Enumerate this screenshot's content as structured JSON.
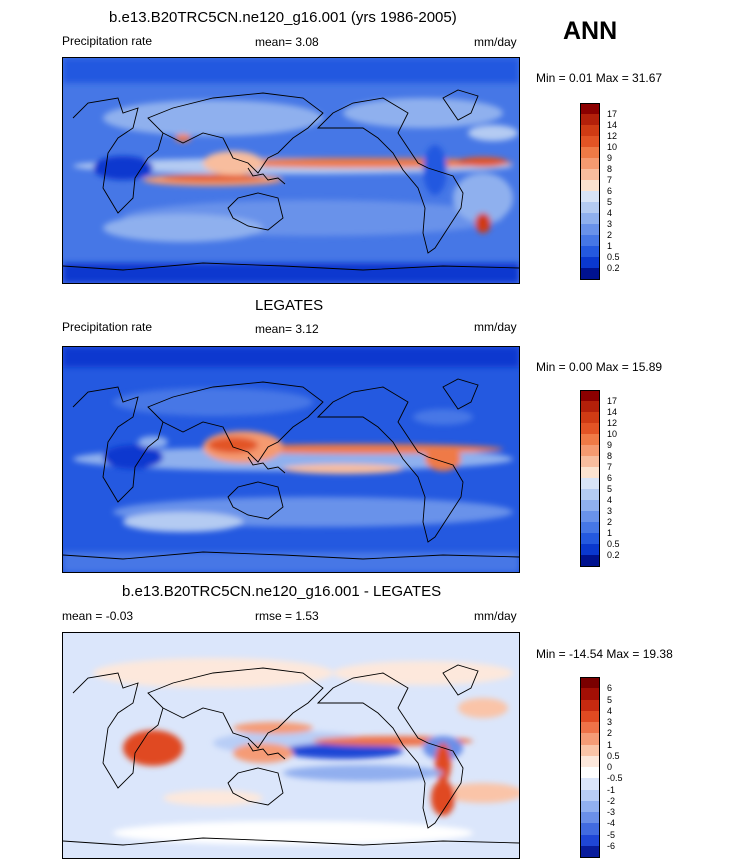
{
  "season": "ANN",
  "panels": [
    {
      "title": "b.e13.B20TRC5CN.ne120_g16.001 (yrs 1986-2005)",
      "left_label": "Precipitation rate",
      "mid_label": "mean=   3.08",
      "units": "mm/day",
      "minmax": "Min =   0.01 Max =  31.67",
      "levels": [
        "17",
        "14",
        "12",
        "10",
        "9",
        "8",
        "7",
        "6",
        "5",
        "4",
        "3",
        "2",
        "1",
        "0.5",
        "0.2"
      ],
      "colors": [
        "#8b0000",
        "#b3200a",
        "#cf3b14",
        "#e25425",
        "#ef7a46",
        "#f59a70",
        "#f8bd9e",
        "#fbe3d0",
        "#d8e4f7",
        "#b4cbf2",
        "#8fb0ee",
        "#6992ea",
        "#4677e6",
        "#2459e0",
        "#0a38cf",
        "#00128f"
      ]
    },
    {
      "title": "LEGATES",
      "left_label": "Precipitation rate",
      "mid_label": "mean=   3.12",
      "units": "mm/day",
      "minmax": "Min =   0.00 Max =  15.89",
      "levels": [
        "17",
        "14",
        "12",
        "10",
        "9",
        "8",
        "7",
        "6",
        "5",
        "4",
        "3",
        "2",
        "1",
        "0.5",
        "0.2"
      ],
      "colors": [
        "#8b0000",
        "#b3200a",
        "#cf3b14",
        "#e25425",
        "#ef7a46",
        "#f59a70",
        "#f8bd9e",
        "#fbe3d0",
        "#d8e4f7",
        "#b4cbf2",
        "#8fb0ee",
        "#6992ea",
        "#4677e6",
        "#2459e0",
        "#0a38cf",
        "#00128f"
      ]
    },
    {
      "title": "b.e13.B20TRC5CN.ne120_g16.001 - LEGATES",
      "left_label": "mean =  -0.03",
      "mid_label": "rmse =   1.53",
      "units": "mm/day",
      "minmax": "Min = -14.54 Max =  19.38",
      "levels": [
        "6",
        "5",
        "4",
        "3",
        "2",
        "1",
        "0.5",
        "0",
        "-0.5",
        "-1",
        "-2",
        "-3",
        "-4",
        "-5",
        "-6"
      ],
      "colors": [
        "#7a0000",
        "#a30f05",
        "#c62a10",
        "#e04a22",
        "#ee7248",
        "#f59b76",
        "#fac4a8",
        "#fde8dc",
        "#ffffff",
        "#dbe6fb",
        "#b8cdf6",
        "#91afef",
        "#6b8fe8",
        "#426be0",
        "#1f46d6",
        "#081c9c"
      ]
    }
  ]
}
